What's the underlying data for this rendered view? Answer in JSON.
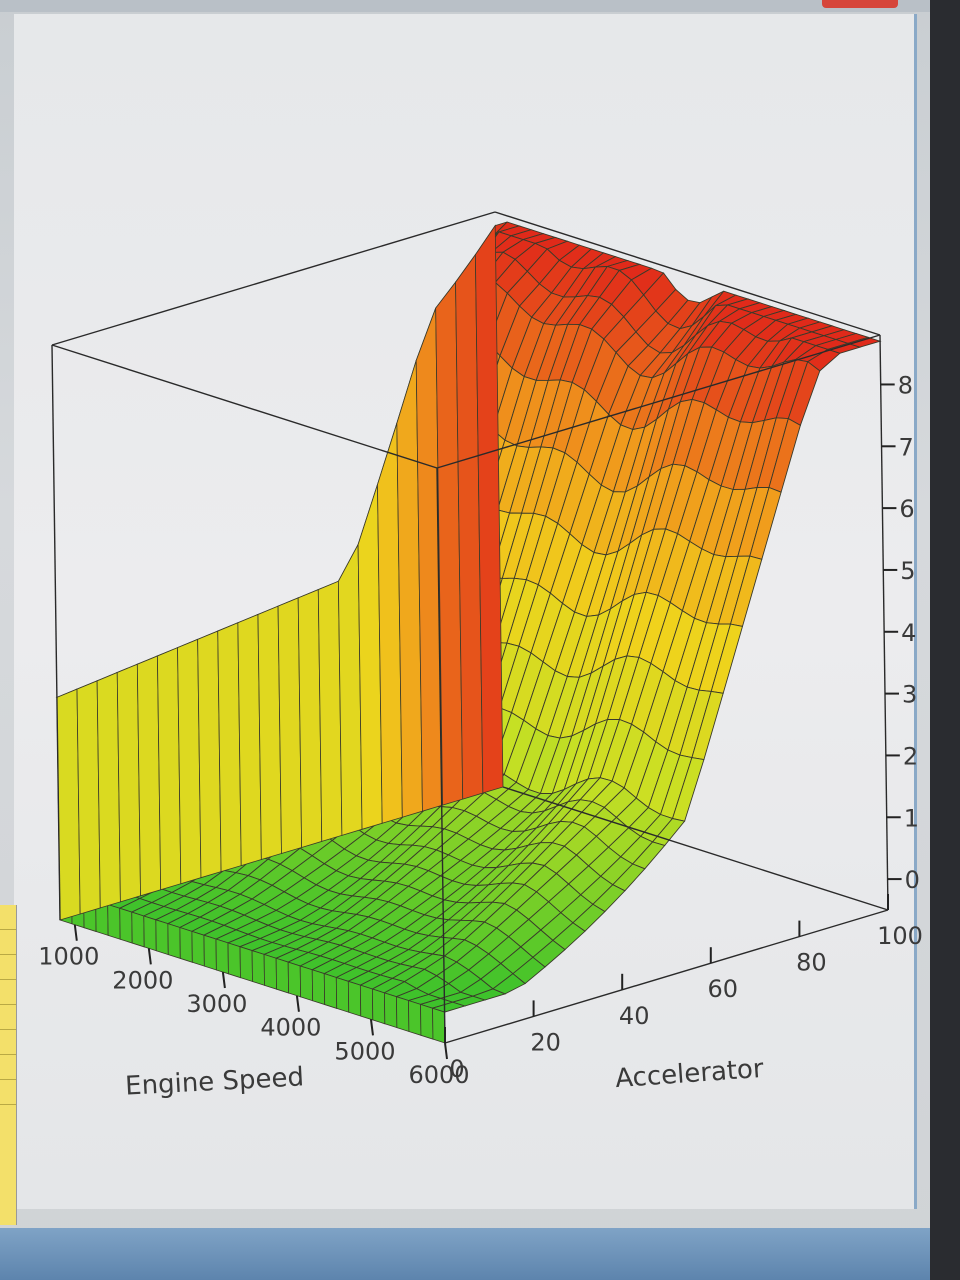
{
  "chart_data": {
    "type": "surface3d",
    "xlabel": "Engine Speed",
    "ylabel": "Accelerator",
    "x_ticks": [
      "1000",
      "2000",
      "3000",
      "4000",
      "5000",
      "6000"
    ],
    "y_ticks": [
      "0",
      "20",
      "40",
      "60",
      "80",
      "100"
    ],
    "z_ticks": [
      "0",
      "1",
      "2",
      "3",
      "4",
      "5",
      "6",
      "7",
      "8"
    ],
    "xlim": [
      800,
      6000
    ],
    "ylim": [
      0,
      100
    ],
    "zlim": [
      -0.5,
      8.8
    ],
    "colormap": [
      "#3ec22b",
      "#c8e024",
      "#f0d21c",
      "#f0961c",
      "#e02a1a"
    ]
  }
}
